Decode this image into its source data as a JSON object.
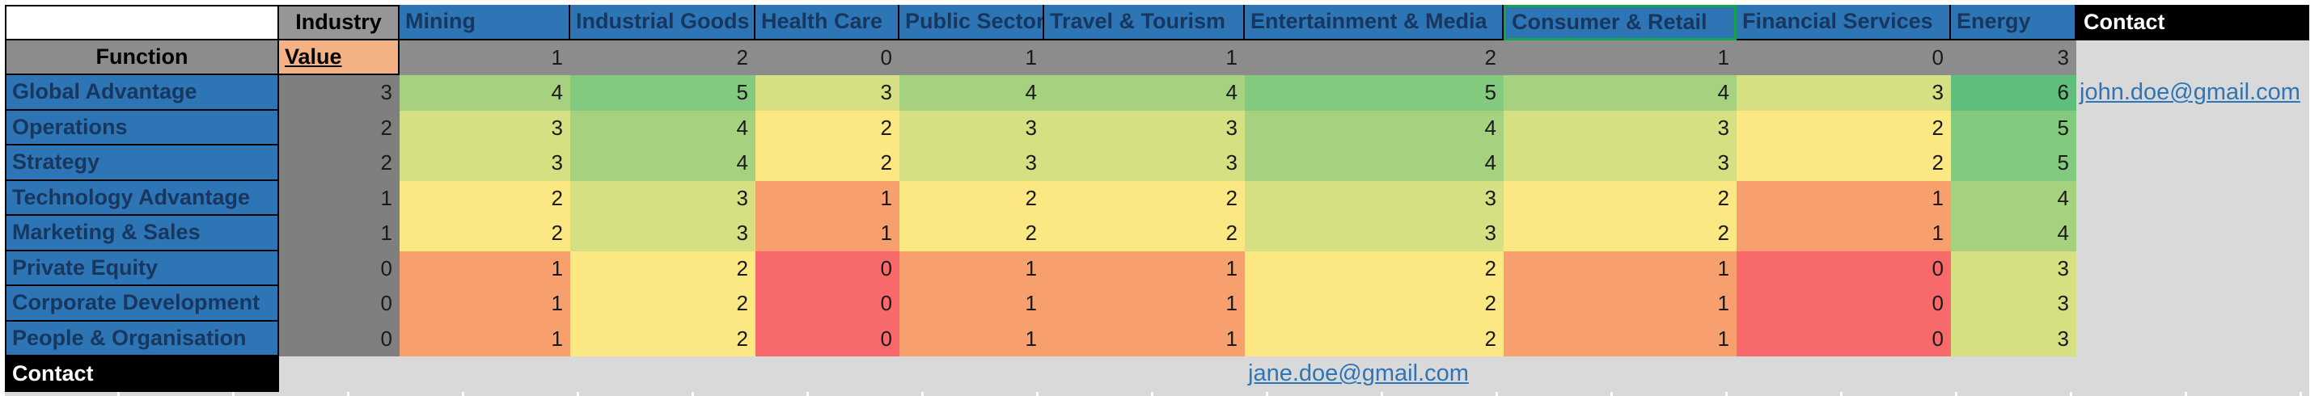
{
  "colors": {
    "header_blue": "#2E75B6",
    "header_text": "#17375E",
    "industry_header_gray": "#969696",
    "function_row_gray": "#8C8C8C",
    "value_column_gray": "#7F7F7F",
    "value_header_orange": "#F4B183",
    "contact_black": "#000000",
    "empty_gray": "#D9D9D9",
    "link_blue": "#2E75B6",
    "selection_green": "#18A24D"
  },
  "heat_scale": {
    "0": "#F8696B",
    "1": "#F7A06E",
    "2": "#FCE883",
    "3": "#D6DF81",
    "4": "#A6D17F",
    "5": "#83C97E",
    "6": "#5FBE7B"
  },
  "table": {
    "industry_header": "Industry",
    "function_header": "Function",
    "value_header": "Value",
    "contact_header": "Contact",
    "contact_row_label": "Contact",
    "industries": [
      {
        "name": "Mining",
        "value": 1
      },
      {
        "name": "Industrial Goods",
        "value": 2
      },
      {
        "name": "Health Care",
        "value": 0
      },
      {
        "name": "Public Sector",
        "value": 1
      },
      {
        "name": "Travel & Tourism",
        "value": 1
      },
      {
        "name": "Entertainment & Media",
        "value": 2
      },
      {
        "name": "Consumer & Retail",
        "value": 1,
        "selected": true
      },
      {
        "name": "Financial Services",
        "value": 0
      },
      {
        "name": "Energy",
        "value": 3
      }
    ],
    "functions": [
      {
        "name": "Global Advantage",
        "value": 3,
        "scores": [
          4,
          5,
          3,
          4,
          4,
          5,
          4,
          3,
          6
        ]
      },
      {
        "name": "Operations",
        "value": 2,
        "scores": [
          3,
          4,
          2,
          3,
          3,
          4,
          3,
          2,
          5
        ]
      },
      {
        "name": "Strategy",
        "value": 2,
        "scores": [
          3,
          4,
          2,
          3,
          3,
          4,
          3,
          2,
          5
        ]
      },
      {
        "name": "Technology Advantage",
        "value": 1,
        "scores": [
          2,
          3,
          1,
          2,
          2,
          3,
          2,
          1,
          4
        ]
      },
      {
        "name": "Marketing & Sales",
        "value": 1,
        "scores": [
          2,
          3,
          1,
          2,
          2,
          3,
          2,
          1,
          4
        ]
      },
      {
        "name": "Private Equity",
        "value": 0,
        "scores": [
          1,
          2,
          0,
          1,
          1,
          2,
          1,
          0,
          3
        ]
      },
      {
        "name": "Corporate Development",
        "value": 0,
        "scores": [
          1,
          2,
          0,
          1,
          1,
          2,
          1,
          0,
          3
        ]
      },
      {
        "name": "People & Organisation",
        "value": 0,
        "scores": [
          1,
          2,
          0,
          1,
          1,
          2,
          1,
          0,
          3
        ]
      }
    ],
    "contacts": {
      "row_email": "john.doe@gmail.com",
      "bottom_email": "jane.doe@gmail.com"
    }
  }
}
